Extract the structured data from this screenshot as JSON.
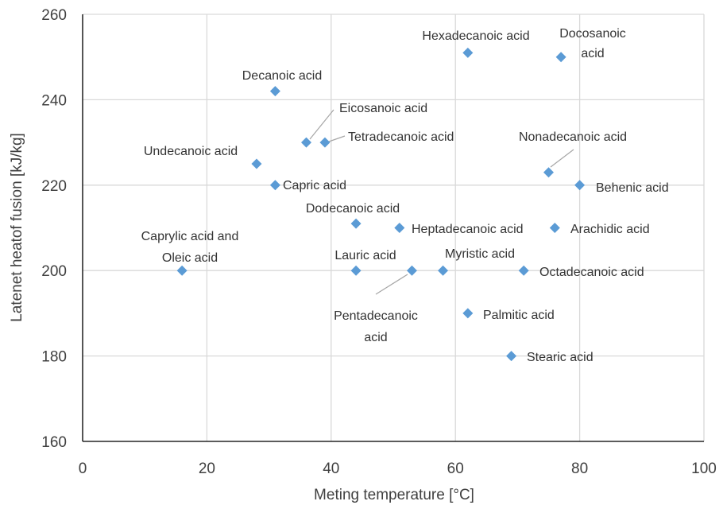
{
  "chart_data": {
    "type": "scatter",
    "title": "",
    "xlabel": "Meting temperature  [°C]",
    "ylabel": "Latenet heatof fusion [kJ/kg]",
    "xlim": [
      0,
      100
    ],
    "ylim": [
      160,
      260
    ],
    "xticks": [
      0,
      20,
      40,
      60,
      80,
      100
    ],
    "yticks": [
      160,
      180,
      200,
      220,
      240,
      260
    ],
    "grid": true,
    "marker_color": "#5B9BD5",
    "points": [
      {
        "name": "Hexadecanoic acid",
        "x": 62,
        "y": 251
      },
      {
        "name": "Docosanoic acid",
        "x": 77,
        "y": 250
      },
      {
        "name": "Decanoic acid",
        "x": 31,
        "y": 242
      },
      {
        "name": "Eicosanoic acid",
        "x": 36,
        "y": 230
      },
      {
        "name": "Tetradecanoic acid",
        "x": 39,
        "y": 230
      },
      {
        "name": "Undecanoic acid",
        "x": 28,
        "y": 225
      },
      {
        "name": "Nonadecanoic acid",
        "x": 75,
        "y": 223
      },
      {
        "name": "Capric acid",
        "x": 31,
        "y": 220
      },
      {
        "name": "Behenic acid",
        "x": 80,
        "y": 220
      },
      {
        "name": "Dodecanoic acid",
        "x": 44,
        "y": 211
      },
      {
        "name": "Heptadecanoic acid",
        "x": 51,
        "y": 210
      },
      {
        "name": "Arachidic acid",
        "x": 76,
        "y": 210
      },
      {
        "name": "Caprylic acid and Oleic acid",
        "x": 16,
        "y": 200
      },
      {
        "name": "Lauric acid",
        "x": 44,
        "y": 200
      },
      {
        "name": "Pentadecanoic acid",
        "x": 53,
        "y": 200
      },
      {
        "name": "Myristic acid",
        "x": 58,
        "y": 200
      },
      {
        "name": "Octadecanoic acid",
        "x": 71,
        "y": 200
      },
      {
        "name": "Palmitic acid",
        "x": 62,
        "y": 190
      },
      {
        "name": "Stearic acid",
        "x": 69,
        "y": 180
      }
    ],
    "labels": [
      {
        "lines": [
          "Hexadecanoic acid"
        ]
      },
      {
        "lines": [
          "Docosanoic",
          "acid"
        ]
      },
      {
        "lines": [
          "Decanoic acid"
        ]
      },
      {
        "lines": [
          "Eicosanoic acid"
        ]
      },
      {
        "lines": [
          "Tetradecanoic acid"
        ]
      },
      {
        "lines": [
          "Undecanoic acid"
        ]
      },
      {
        "lines": [
          "Nonadecanoic acid"
        ]
      },
      {
        "lines": [
          "Capric acid"
        ]
      },
      {
        "lines": [
          "Behenic acid"
        ]
      },
      {
        "lines": [
          "Dodecanoic acid"
        ]
      },
      {
        "lines": [
          "Heptadecanoic acid"
        ]
      },
      {
        "lines": [
          "Arachidic acid"
        ]
      },
      {
        "lines": [
          "Caprylic acid and",
          "Oleic acid"
        ]
      },
      {
        "lines": [
          "Lauric acid"
        ]
      },
      {
        "lines": [
          "Pentadecanoic",
          "acid"
        ]
      },
      {
        "lines": [
          "Myristic acid"
        ]
      },
      {
        "lines": [
          "Octadecanoic acid"
        ]
      },
      {
        "lines": [
          "Palmitic acid"
        ]
      },
      {
        "lines": [
          "Stearic acid"
        ]
      }
    ]
  }
}
